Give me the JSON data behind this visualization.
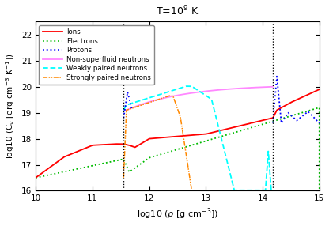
{
  "title": "T=10$^9$ K",
  "xlabel": "log10 (ρ [g cm$^{-3}$])",
  "ylabel": "log10 (C$_v$ [erg cm$^{-3}$ K$^{-1}$])",
  "xlim": [
    10,
    15
  ],
  "ylim": [
    16,
    22.5
  ],
  "vline1_x": 11.55,
  "vline2_x": 14.18,
  "background_color": "#ffffff"
}
